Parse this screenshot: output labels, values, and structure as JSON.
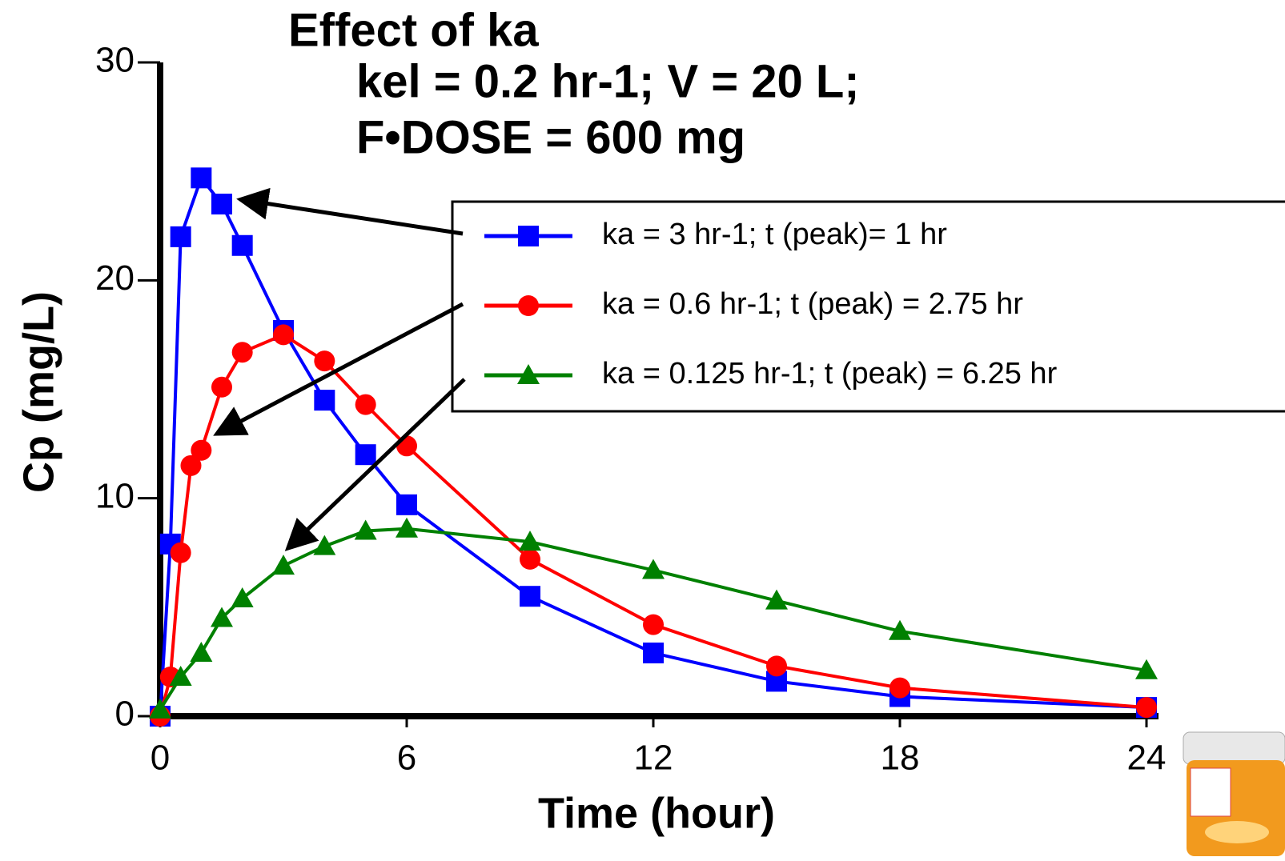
{
  "chart_data": {
    "type": "line",
    "title": "Effect of ka",
    "subtitle": [
      "kel = 0.2 hr-1; V = 20 L;",
      "F•DOSE = 600 mg"
    ],
    "x_label": "Time (hour)",
    "y_label": "Cp (mg/L)",
    "xlim": [
      0,
      24
    ],
    "xticks": [
      0,
      6,
      12,
      18,
      24
    ],
    "ylim": [
      0,
      30
    ],
    "yticks": [
      0,
      10,
      20,
      30
    ],
    "legend": "upper right",
    "series": [
      {
        "name": "ka = 3 hr-1; t (peak)= 1 hr",
        "color": "#0000ff",
        "marker": "square",
        "x": [
          0,
          0.25,
          0.5,
          1,
          1.5,
          2,
          3,
          4,
          5,
          6,
          9,
          12,
          15,
          18,
          24
        ],
        "values": [
          0,
          7.9,
          22.0,
          24.7,
          23.5,
          21.6,
          17.7,
          14.5,
          12.0,
          9.7,
          5.5,
          2.9,
          1.6,
          0.9,
          0.4
        ]
      },
      {
        "name": "ka = 0.6 hr-1; t (peak) =  2.75 hr",
        "color": "#ff0000",
        "marker": "circle",
        "x": [
          0,
          0.25,
          0.5,
          0.75,
          1,
          1.5,
          2,
          3,
          4,
          5,
          6,
          9,
          12,
          15,
          18,
          24
        ],
        "values": [
          0,
          1.8,
          7.5,
          11.5,
          12.2,
          15.1,
          16.7,
          17.5,
          16.3,
          14.3,
          12.4,
          7.2,
          4.2,
          2.3,
          1.3,
          0.4
        ]
      },
      {
        "name": "ka = 0.125 hr-1; t (peak) = 6.25 hr",
        "color": "#008000",
        "marker": "triangle",
        "x": [
          0,
          0.5,
          1,
          1.5,
          2,
          3,
          4,
          5,
          6,
          9,
          12,
          15,
          18,
          24
        ],
        "values": [
          0.3,
          1.8,
          2.9,
          4.5,
          5.4,
          6.9,
          7.8,
          8.5,
          8.6,
          8.0,
          6.7,
          5.3,
          3.9,
          2.1
        ]
      }
    ]
  }
}
